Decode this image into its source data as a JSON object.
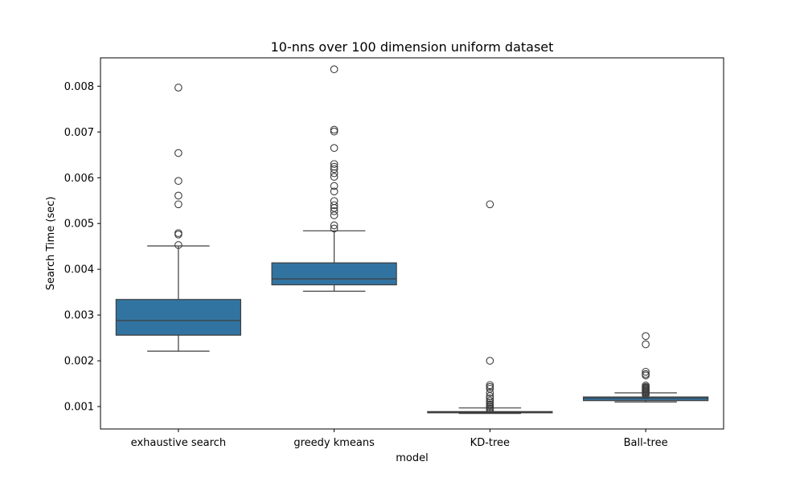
{
  "chart_data": {
    "type": "box",
    "title": "10-nns over 100 dimension uniform dataset",
    "xlabel": "model",
    "ylabel": "Search Time (sec)",
    "categories": [
      "exhaustive search",
      "greedy kmeans",
      "KD-tree",
      "Ball-tree"
    ],
    "ylim": [
      0.00051,
      0.00862
    ],
    "yticks": [
      0.001,
      0.002,
      0.003,
      0.004,
      0.005,
      0.006,
      0.007,
      0.008
    ],
    "ytick_labels": [
      "0.001",
      "0.002",
      "0.003",
      "0.004",
      "0.005",
      "0.006",
      "0.007",
      "0.008"
    ],
    "grid": false,
    "box_color": "#3274a1",
    "line_color": "#3d3d3d",
    "boxes": [
      {
        "category": "exhaustive search",
        "whisker_low": 0.00221,
        "q1": 0.00256,
        "median": 0.00288,
        "q3": 0.00334,
        "whisker_high": 0.00451,
        "outliers": [
          0.00453,
          0.00476,
          0.00479,
          0.00542,
          0.00561,
          0.00593,
          0.00654,
          0.00797
        ]
      },
      {
        "category": "greedy kmeans",
        "whisker_low": 0.00352,
        "q1": 0.00366,
        "median": 0.00379,
        "q3": 0.00414,
        "whisker_high": 0.00484,
        "outliers": [
          0.00489,
          0.00496,
          0.00518,
          0.00527,
          0.00534,
          0.0054,
          0.00549,
          0.0057,
          0.00582,
          0.00602,
          0.0061,
          0.00619,
          0.00624,
          0.0063,
          0.00665,
          0.00701,
          0.00705,
          0.00837
        ]
      },
      {
        "category": "KD-tree",
        "whisker_low": 0.00085,
        "q1": 0.00087,
        "median": 0.00088,
        "q3": 0.00089,
        "whisker_high": 0.00097,
        "outliers": [
          0.00093,
          0.00096,
          0.00099,
          0.00102,
          0.00105,
          0.00109,
          0.00113,
          0.00118,
          0.00123,
          0.0013,
          0.00139,
          0.00143,
          0.00147,
          0.002,
          0.00542
        ]
      },
      {
        "category": "Ball-tree",
        "whisker_low": 0.0011,
        "q1": 0.00113,
        "median": 0.00118,
        "q3": 0.00121,
        "whisker_high": 0.0013,
        "outliers": [
          0.00126,
          0.00129,
          0.00131,
          0.00133,
          0.00135,
          0.00137,
          0.00139,
          0.00141,
          0.00143,
          0.00146,
          0.00168,
          0.00171,
          0.00176,
          0.00236,
          0.00254
        ]
      }
    ]
  }
}
